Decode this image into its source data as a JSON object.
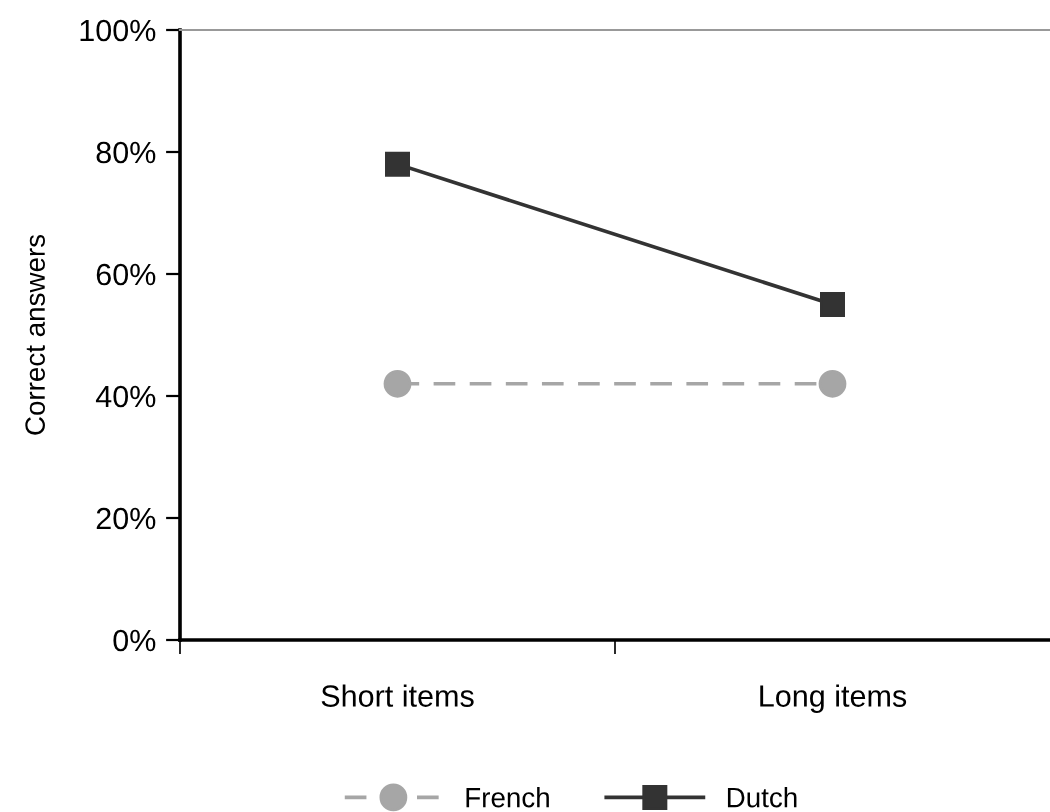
{
  "chart_data": {
    "type": "line",
    "ylabel": "Correct answers",
    "categories": [
      "Short items",
      "Long items"
    ],
    "series": [
      {
        "name": "French",
        "color": "#a6a6a6",
        "values": [
          42,
          42
        ],
        "marker": "circle",
        "line_style": "dashed"
      },
      {
        "name": "Dutch",
        "color": "#333333",
        "values": [
          78,
          55
        ],
        "marker": "square",
        "line_style": "solid"
      }
    ],
    "ylim": [
      0,
      100
    ],
    "yticks": [
      {
        "value": 0,
        "label": "0%"
      },
      {
        "value": 20,
        "label": "20%"
      },
      {
        "value": 40,
        "label": "40%"
      },
      {
        "value": 60,
        "label": "60%"
      },
      {
        "value": 80,
        "label": "80%"
      },
      {
        "value": 100,
        "label": "100%"
      }
    ],
    "grid": false,
    "legend": "bottom"
  }
}
